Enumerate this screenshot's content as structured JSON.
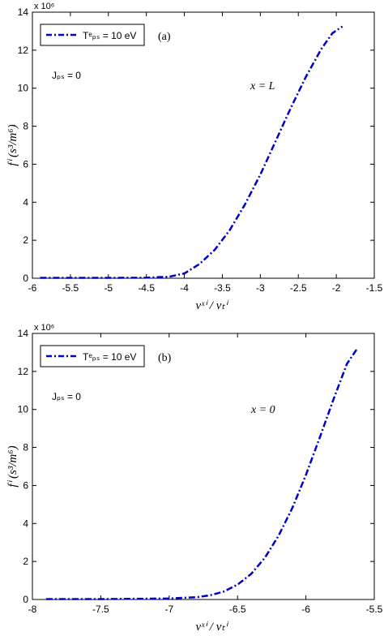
{
  "chart_data": [
    {
      "type": "line",
      "panel_label": "(a)",
      "exponent_label": "x 10⁶",
      "xlabel": "vˣⁱ / vₜⁱ",
      "ylabel": "fⁱ (s³/m⁶)",
      "xlim": [
        -6,
        -1.5
      ],
      "ylim": [
        0,
        14
      ],
      "xticks": [
        -6,
        -5.5,
        -5,
        -4.5,
        -4,
        -3.5,
        -3,
        -2.5,
        -2,
        -1.5
      ],
      "xtick_labels": [
        "-6",
        "-5.5",
        "-5",
        "-4.5",
        "-4",
        "-3.5",
        "-3",
        "-2.5",
        "-2",
        "-1.5"
      ],
      "yticks": [
        0,
        2,
        4,
        6,
        8,
        10,
        12,
        14
      ],
      "ytick_labels": [
        "0",
        "2",
        "4",
        "6",
        "8",
        "10",
        "12",
        "14"
      ],
      "legend": {
        "placement": "top-left",
        "text": "Tᵉₚₛ = 10 eV"
      },
      "annotations": [
        "Jₚₛ = 0",
        "x = L"
      ],
      "series": [
        {
          "name": "Tᵉₚₛ = 10 eV",
          "color": "#0000cc",
          "style": "dash-dot",
          "x": [
            -5.9,
            -5.5,
            -5.0,
            -4.5,
            -4.2,
            -4.0,
            -3.8,
            -3.6,
            -3.4,
            -3.2,
            -3.0,
            -2.8,
            -2.6,
            -2.4,
            -2.2,
            -2.05,
            -1.92
          ],
          "y": [
            0.02,
            0.02,
            0.02,
            0.03,
            0.08,
            0.25,
            0.75,
            1.5,
            2.55,
            3.9,
            5.45,
            7.2,
            8.95,
            10.6,
            12.05,
            12.9,
            13.25
          ]
        }
      ]
    },
    {
      "type": "line",
      "panel_label": "(b)",
      "exponent_label": "x 10⁶",
      "xlabel": "vˣⁱ / vₜⁱ",
      "ylabel": "fⁱ (s³/m⁶)",
      "xlim": [
        -8,
        -5.5
      ],
      "ylim": [
        0,
        14
      ],
      "xticks": [
        -8,
        -7.5,
        -7,
        -6.5,
        -6,
        -5.5
      ],
      "xtick_labels": [
        "-8",
        "-7.5",
        "-7",
        "-6.5",
        "-6",
        "-5.5"
      ],
      "yticks": [
        0,
        2,
        4,
        6,
        8,
        10,
        12,
        14
      ],
      "ytick_labels": [
        "0",
        "2",
        "4",
        "6",
        "8",
        "10",
        "12",
        "14"
      ],
      "legend": {
        "placement": "top-left",
        "text": "Tᵉₚₛ = 10 eV"
      },
      "annotations": [
        "Jₚₛ = 0",
        "x = 0"
      ],
      "series": [
        {
          "name": "Tᵉₚₛ = 10 eV",
          "color": "#0000cc",
          "style": "dash-dot",
          "x": [
            -7.9,
            -7.5,
            -7.0,
            -6.8,
            -6.7,
            -6.6,
            -6.5,
            -6.4,
            -6.3,
            -6.2,
            -6.1,
            -6.0,
            -5.9,
            -5.8,
            -5.7,
            -5.62
          ],
          "y": [
            0.02,
            0.02,
            0.05,
            0.12,
            0.22,
            0.42,
            0.78,
            1.35,
            2.2,
            3.35,
            4.8,
            6.55,
            8.5,
            10.5,
            12.4,
            13.25
          ]
        }
      ]
    }
  ]
}
